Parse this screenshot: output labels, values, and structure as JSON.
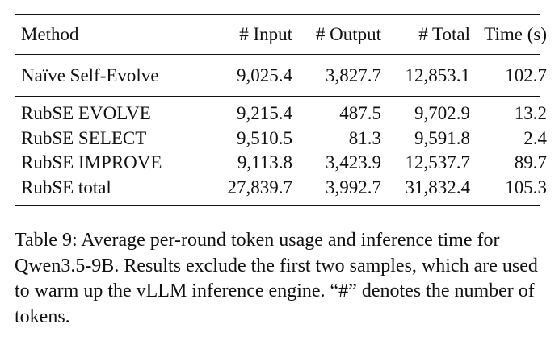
{
  "table": {
    "headers": [
      "Method",
      "# Input",
      "# Output",
      "# Total",
      "Time (s)"
    ],
    "baseline_rows": [
      [
        "Naïve Self-Evolve",
        "9,025.4",
        "3,827.7",
        "12,853.1",
        "102.7"
      ]
    ],
    "rubse_rows": [
      [
        "RubSE EVOLVE",
        "9,215.4",
        "487.5",
        "9,702.9",
        "13.2"
      ],
      [
        "RubSE SELECT",
        "9,510.5",
        "81.3",
        "9,591.8",
        "2.4"
      ],
      [
        "RubSE IMPROVE",
        "9,113.8",
        "3,423.9",
        "12,537.7",
        "89.7"
      ],
      [
        "RubSE total",
        "27,839.7",
        "3,992.7",
        "31,832.4",
        "105.3"
      ]
    ]
  },
  "caption": "Table 9: Average per-round token usage and inference time for Qwen3.5-9B. Results exclude the first two samples, which are used to warm up the vLLM inference engine. “#” denotes the number of tokens."
}
